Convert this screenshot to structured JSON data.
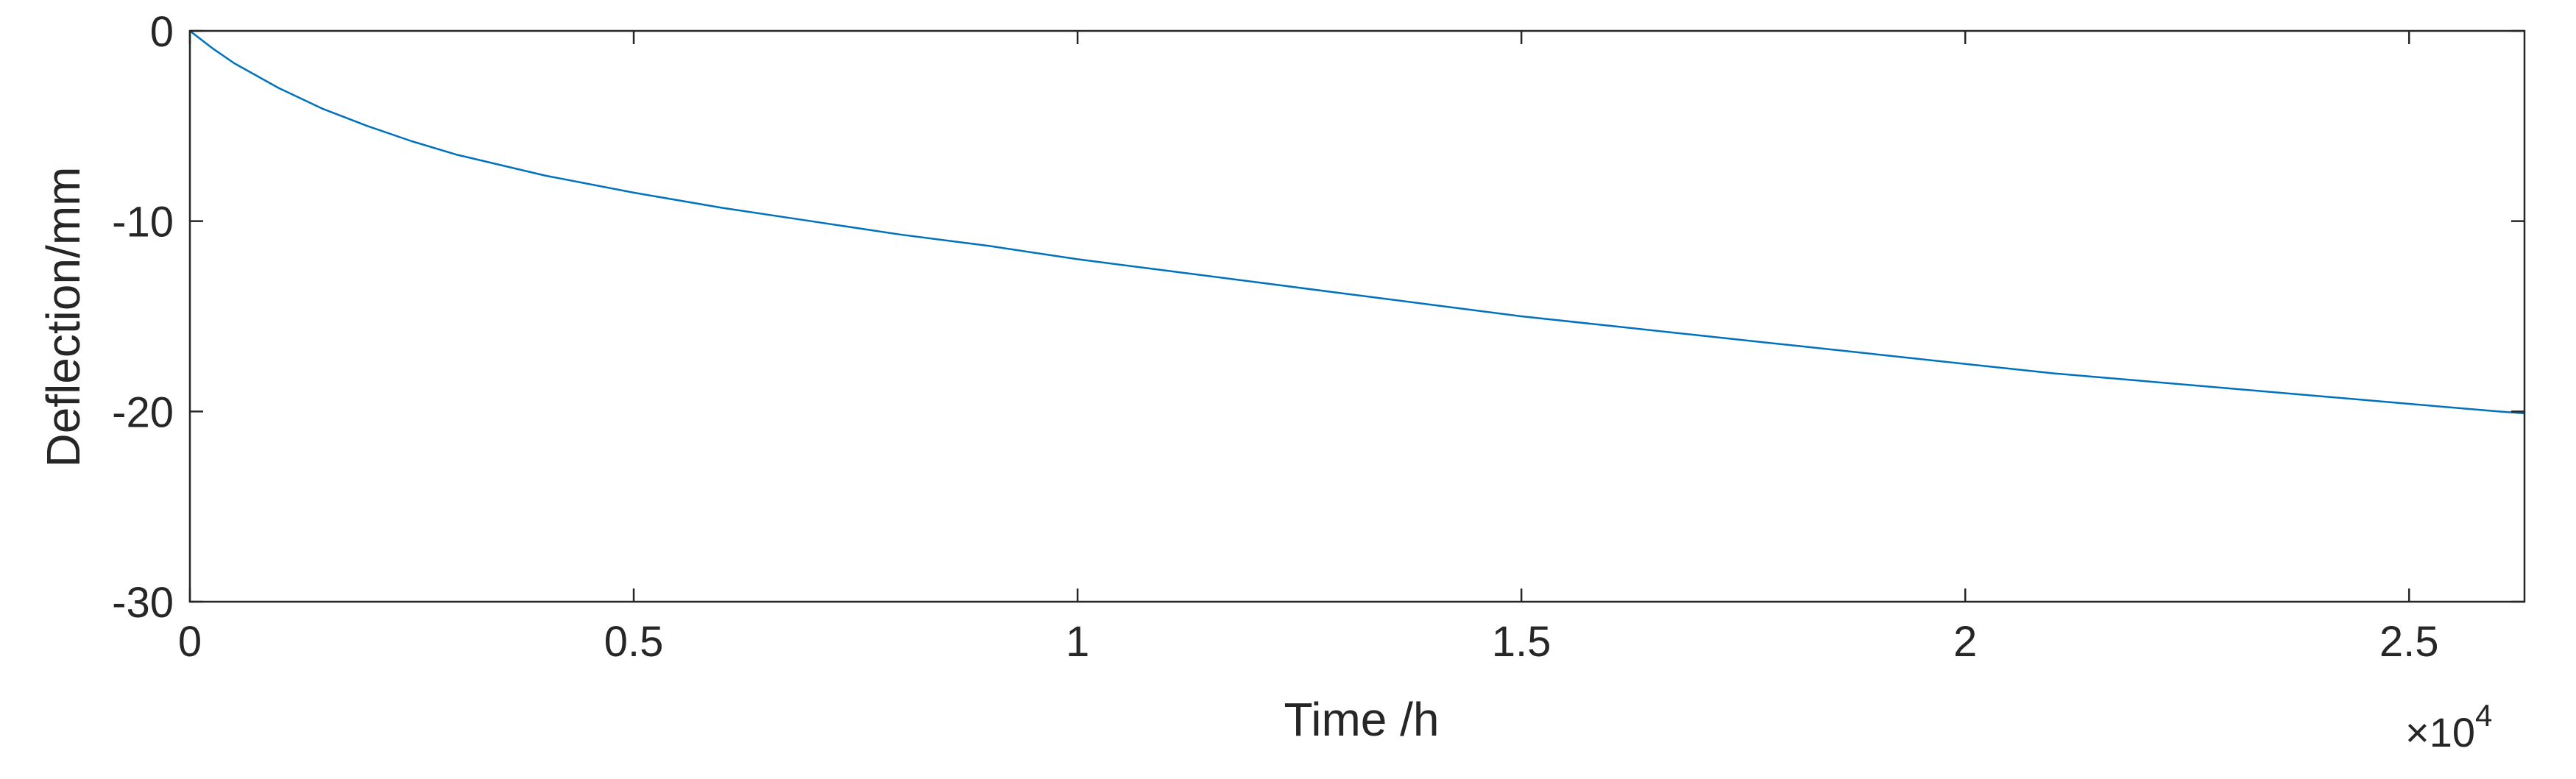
{
  "chart_data": {
    "type": "line",
    "xlabel": "Time /h",
    "ylabel": "Deflection/mm",
    "x_multiplier": "×10",
    "x_multiplier_exponent": "4",
    "xlim": [
      0,
      26300
    ],
    "ylim": [
      -30,
      0
    ],
    "x_ticks": [
      0,
      5000,
      10000,
      15000,
      20000,
      25000
    ],
    "x_tick_labels": [
      "0",
      "0.5",
      "1",
      "1.5",
      "2",
      "2.5"
    ],
    "y_ticks": [
      -30,
      -20,
      -10,
      0
    ],
    "y_tick_labels": [
      "-30",
      "-20",
      "-10",
      "0"
    ],
    "grid": false,
    "series": [
      {
        "color": "#0072BD",
        "x": [
          0,
          250,
          500,
          1000,
          1500,
          2000,
          2500,
          3000,
          4000,
          5000,
          6000,
          7000,
          8000,
          9000,
          10000,
          11000,
          12000,
          13000,
          14000,
          15000,
          16000,
          17000,
          18000,
          19000,
          20000,
          21000,
          22000,
          23000,
          24000,
          25000,
          26000,
          26300
        ],
        "y": [
          0,
          -0.9,
          -1.7,
          -3.0,
          -4.1,
          -5.0,
          -5.8,
          -6.5,
          -7.6,
          -8.5,
          -9.3,
          -10.0,
          -10.7,
          -11.3,
          -12.0,
          -12.6,
          -13.2,
          -13.8,
          -14.4,
          -15.0,
          -15.5,
          -16.0,
          -16.5,
          -17.0,
          -17.5,
          -18.0,
          -18.4,
          -18.8,
          -19.2,
          -19.6,
          -20.0,
          -20.1
        ]
      }
    ]
  }
}
